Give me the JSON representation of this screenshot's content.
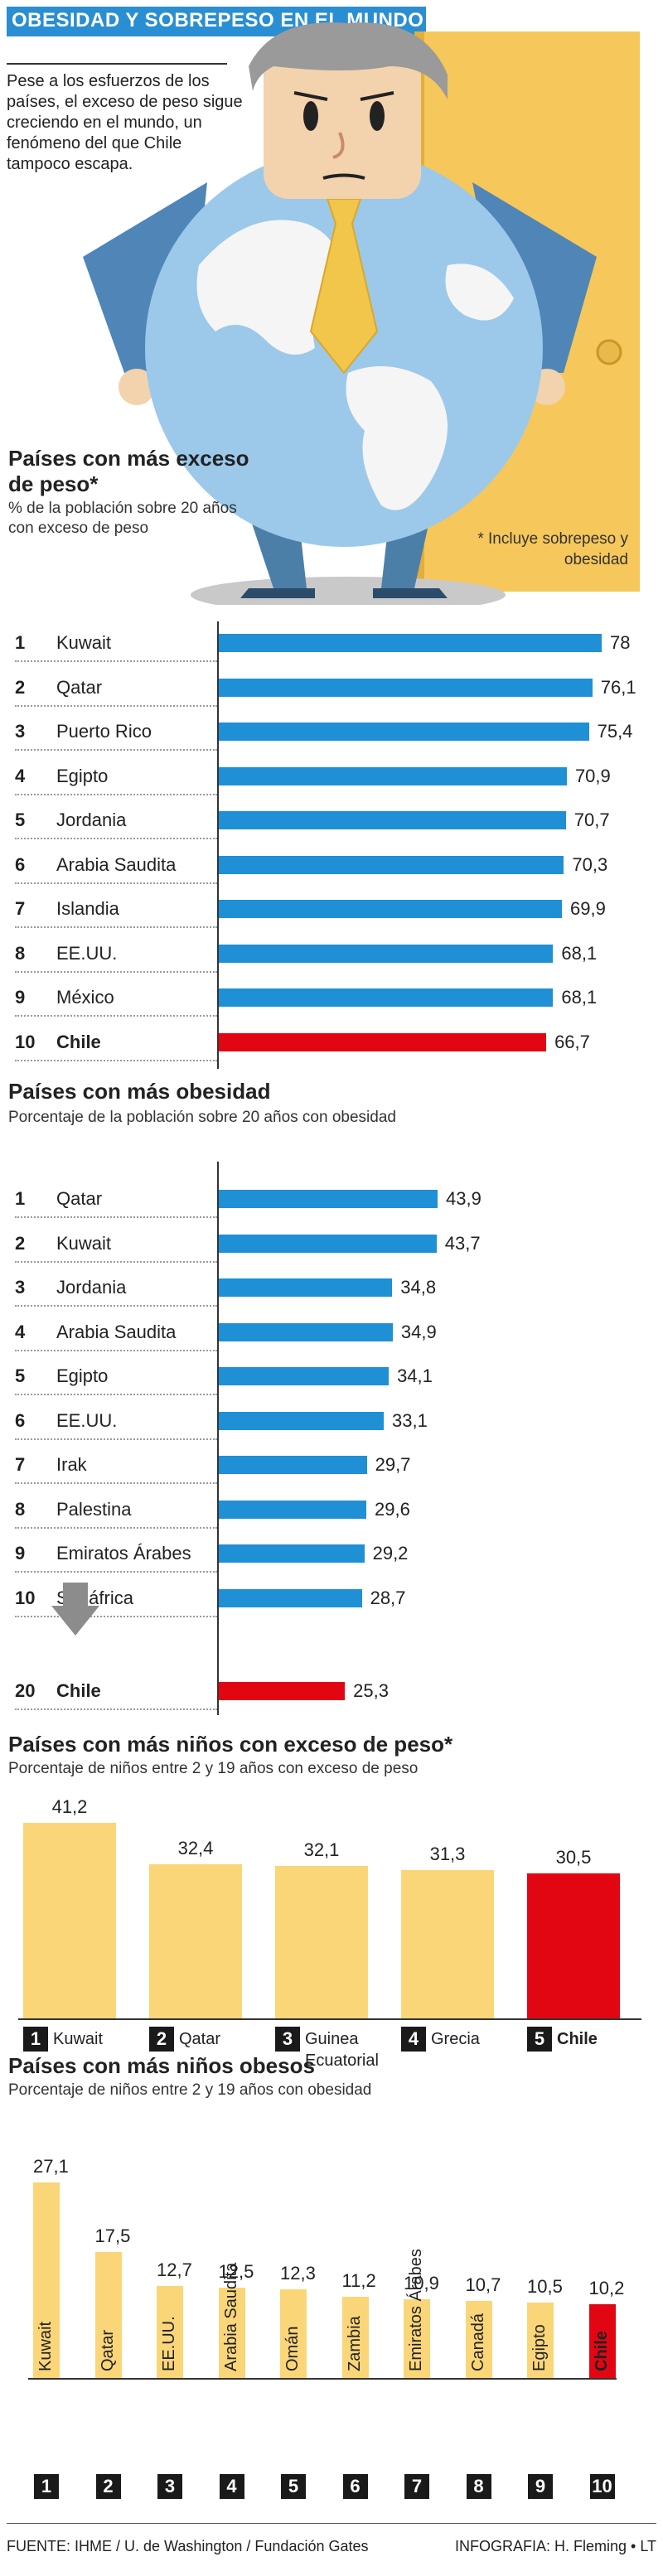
{
  "header": {
    "title": "OBESIDAD Y SOBREPESO EN EL MUNDO",
    "intro": "Pese a los esfuerzos de los países, el exceso de peso sigue creciendo en el mundo, un fenómeno del que Chile tampoco escapa.",
    "footnote": "* Incluye sobrepeso y obesidad"
  },
  "colors": {
    "blue": "#1f8fd6",
    "red": "#e20613",
    "yellow": "#fad679",
    "title_bg": "#2a8ed2"
  },
  "chart_data": [
    {
      "type": "bar",
      "orientation": "horizontal",
      "title": "Países con más exceso de peso*",
      "subtitle": "% de la población sobre 20 años con exceso de peso",
      "ranks": [
        "1",
        "2",
        "3",
        "4",
        "5",
        "6",
        "7",
        "8",
        "9",
        "10"
      ],
      "categories": [
        "Kuwait",
        "Qatar",
        "Puerto Rico",
        "Egipto",
        "Jordania",
        "Arabia Saudita",
        "Islandia",
        "EE.UU.",
        "México",
        "Chile"
      ],
      "values": [
        78,
        76.1,
        75.4,
        70.9,
        70.7,
        70.3,
        69.9,
        68.1,
        68.1,
        66.7
      ],
      "labels": [
        "78",
        "76,1",
        "75,4",
        "70,9",
        "70,7",
        "70,3",
        "69,9",
        "68,1",
        "68,1",
        "66,7"
      ],
      "highlight": "Chile"
    },
    {
      "type": "bar",
      "orientation": "horizontal",
      "title": "Países con más obesidad",
      "subtitle": "Porcentaje de la población sobre 20 años con obesidad",
      "ranks": [
        "1",
        "2",
        "3",
        "4",
        "5",
        "6",
        "7",
        "8",
        "9",
        "10",
        "20"
      ],
      "categories": [
        "Qatar",
        "Kuwait",
        "Jordania",
        "Arabia Saudita",
        "Egipto",
        "EE.UU.",
        "Irak",
        "Palestina",
        "Emiratos Árabes",
        "Sudáfrica",
        "Chile"
      ],
      "values": [
        43.9,
        43.7,
        34.8,
        34.9,
        34.1,
        33.1,
        29.7,
        29.6,
        29.2,
        28.7,
        25.3
      ],
      "labels": [
        "43,9",
        "43,7",
        "34,8",
        "34,9",
        "34,1",
        "33,1",
        "29,7",
        "29,6",
        "29,2",
        "28,7",
        "25,3"
      ],
      "highlight": "Chile"
    },
    {
      "type": "bar",
      "orientation": "vertical",
      "title": "Países con más niños con exceso de peso*",
      "subtitle": "Porcentaje de niños entre 2 y 19 años con exceso de peso",
      "ranks": [
        "1",
        "2",
        "3",
        "4",
        "5"
      ],
      "categories": [
        "Kuwait",
        "Qatar",
        "Guinea Ecuatorial",
        "Grecia",
        "Chile"
      ],
      "values": [
        41.2,
        32.4,
        32.1,
        31.3,
        30.5
      ],
      "labels": [
        "41,2",
        "32,4",
        "32,1",
        "31,3",
        "30,5"
      ],
      "highlight": "Chile"
    },
    {
      "type": "bar",
      "orientation": "vertical",
      "title": "Países con más niños obesos",
      "subtitle": "Porcentaje de niños entre 2 y 19 años con obesidad",
      "ranks": [
        "1",
        "2",
        "3",
        "4",
        "5",
        "6",
        "7",
        "8",
        "9",
        "10"
      ],
      "categories": [
        "Kuwait",
        "Qatar",
        "EE.UU.",
        "Arabia Saudita",
        "Omán",
        "Zambia",
        "Emiratos Árabes",
        "Canadá",
        "Egipto",
        "Chile"
      ],
      "values": [
        27.1,
        17.5,
        12.7,
        12.5,
        12.3,
        11.2,
        10.9,
        10.7,
        10.5,
        10.2
      ],
      "labels": [
        "27,1",
        "17,5",
        "12,7",
        "12,5",
        "12,3",
        "11,2",
        "10,9",
        "10,7",
        "10,5",
        "10,2"
      ],
      "highlight": "Chile"
    }
  ],
  "footer": {
    "source": "FUENTE: IHME / U. de Washington / Fundación Gates",
    "credit": "INFOGRAFIA: H. Fleming • LT"
  }
}
